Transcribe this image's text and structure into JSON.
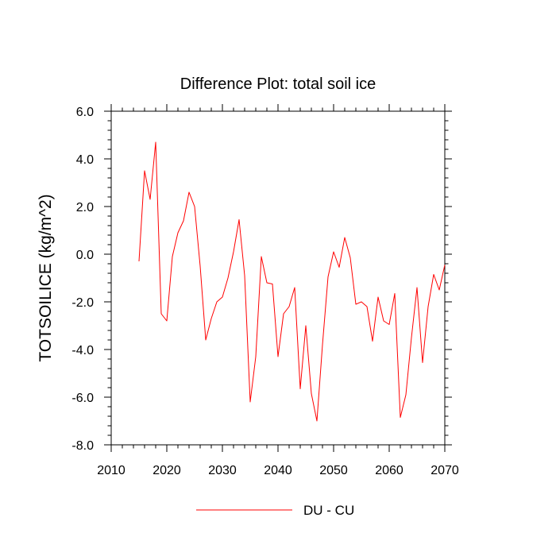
{
  "chart_data": {
    "type": "line",
    "title": "Difference Plot: total soil ice",
    "xlabel": "",
    "ylabel": "TOTSOILICE  (kg/m^2)",
    "xlim": [
      2010,
      2070
    ],
    "ylim": [
      -8.0,
      6.0
    ],
    "xticks": [
      2010,
      2020,
      2030,
      2040,
      2050,
      2060,
      2070
    ],
    "xtick_labels": [
      "2010",
      "2020",
      "2030",
      "2040",
      "2050",
      "2060",
      "2070"
    ],
    "yticks": [
      -8.0,
      -6.0,
      -4.0,
      -2.0,
      0.0,
      2.0,
      4.0,
      6.0
    ],
    "ytick_labels": [
      "-8.0",
      "-6.0",
      "-4.0",
      "-2.0",
      "0.0",
      "2.0",
      "4.0",
      "6.0"
    ],
    "grid": false,
    "legend_position": "bottom-center",
    "series": [
      {
        "name": "DU - CU",
        "color": "#ff0000",
        "x": [
          2015,
          2016,
          2017,
          2018,
          2019,
          2020,
          2021,
          2022,
          2023,
          2024,
          2025,
          2026,
          2027,
          2028,
          2029,
          2030,
          2031,
          2032,
          2033,
          2034,
          2035,
          2036,
          2037,
          2038,
          2039,
          2040,
          2041,
          2042,
          2043,
          2044,
          2045,
          2046,
          2047,
          2048,
          2049,
          2050,
          2051,
          2052,
          2053,
          2054,
          2055,
          2056,
          2057,
          2058,
          2059,
          2060,
          2061,
          2062,
          2063,
          2064,
          2065,
          2066,
          2067,
          2068,
          2069,
          2070
        ],
        "y": [
          -0.3,
          3.5,
          2.3,
          4.7,
          -2.5,
          -2.8,
          -0.1,
          0.9,
          1.4,
          2.6,
          2.0,
          -0.5,
          -3.6,
          -2.7,
          -2.0,
          -1.8,
          -1.0,
          0.1,
          1.45,
          -0.9,
          -6.2,
          -4.3,
          -0.1,
          -1.2,
          -1.25,
          -4.3,
          -2.5,
          -2.2,
          -1.4,
          -5.65,
          -3.0,
          -5.85,
          -7.0,
          -3.8,
          -0.95,
          0.1,
          -0.55,
          0.7,
          -0.15,
          -2.1,
          -2.0,
          -2.2,
          -3.65,
          -1.8,
          -2.8,
          -2.95,
          -1.65,
          -6.85,
          -5.9,
          -3.5,
          -1.4,
          -4.55,
          -2.2,
          -0.85,
          -1.5,
          -0.45
        ]
      }
    ]
  }
}
